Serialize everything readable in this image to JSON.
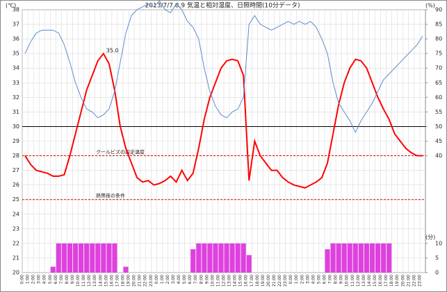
{
  "chart_data": {
    "type": "line",
    "title": "2013/7/7,8,9 気温と相対湿度、日照時間(10分データ)",
    "y_unit": "(℃)",
    "y2_unit": "(%)",
    "y2_unit_bottom": "(分)",
    "categories": [
      "0:00",
      "1:00",
      "2:00",
      "3:00",
      "4:00",
      "5:00",
      "6:00",
      "7:00",
      "8:00",
      "9:00",
      "10:00",
      "11:00",
      "12:00",
      "13:00",
      "14:00",
      "15:00",
      "16:00",
      "17:00",
      "18:00",
      "19:00",
      "20:00",
      "21:00",
      "22:00",
      "23:00",
      "0:00",
      "1:00",
      "2:00",
      "3:00",
      "4:00",
      "5:00",
      "6:00",
      "7:00",
      "8:00",
      "9:00",
      "10:00",
      "11:00",
      "12:00",
      "13:00",
      "14:00",
      "15:00",
      "16:00",
      "17:00",
      "18:00",
      "19:00",
      "20:00",
      "21:00",
      "22:00",
      "23:00",
      "0:00",
      "1:00",
      "2:00",
      "3:00",
      "4:00",
      "5:00",
      "6:00",
      "7:00",
      "8:00",
      "9:00",
      "10:00",
      "11:00",
      "12:00",
      "13:00",
      "14:00",
      "15:00",
      "16:00",
      "17:00",
      "18:00",
      "19:00",
      "20:00",
      "21:00",
      "22:00",
      "23:00"
    ],
    "ylim": [
      20,
      38
    ],
    "yticks": [
      20,
      21,
      22,
      23,
      24,
      25,
      26,
      27,
      28,
      29,
      30,
      31,
      32,
      33,
      34,
      35,
      36,
      37,
      38
    ],
    "y2lim": [
      0,
      90
    ],
    "y2ticks": [
      0,
      5,
      10,
      40,
      45,
      50,
      55,
      60,
      65,
      70,
      75,
      80,
      85,
      90
    ],
    "grid": true,
    "series": [
      {
        "name": "日照時間(分)",
        "type": "bar",
        "axis": "y2",
        "color": "#e040e0",
        "values": [
          0,
          0,
          0,
          0,
          0,
          2,
          10,
          10,
          10,
          10,
          10,
          10,
          10,
          10,
          10,
          10,
          10,
          0,
          2,
          0,
          0,
          0,
          0,
          0,
          0,
          0,
          0,
          0,
          0,
          0,
          8,
          10,
          10,
          10,
          10,
          10,
          10,
          10,
          10,
          10,
          6,
          0,
          0,
          0,
          0,
          0,
          0,
          0,
          0,
          0,
          0,
          0,
          0,
          0,
          8,
          10,
          10,
          10,
          10,
          10,
          10,
          10,
          10,
          10,
          10,
          10,
          0,
          0,
          0,
          0,
          0,
          0
        ]
      },
      {
        "name": "気温(℃)",
        "type": "line",
        "color": "#ff0000",
        "values": [
          28.0,
          27.4,
          27.0,
          26.9,
          26.8,
          26.6,
          26.6,
          26.7,
          28.0,
          29.5,
          31.0,
          32.5,
          33.5,
          34.5,
          35.0,
          34.3,
          32.5,
          30.0,
          28.5,
          27.5,
          26.5,
          26.2,
          26.3,
          26.0,
          26.1,
          26.3,
          26.6,
          26.2,
          27.0,
          26.3,
          26.8,
          28.5,
          30.5,
          32.0,
          33.0,
          34.0,
          34.5,
          34.6,
          34.5,
          33.5,
          26.3,
          29.0,
          28.0,
          27.5,
          27.0,
          27.0,
          26.5,
          26.2,
          26.0,
          25.9,
          25.8,
          26.0,
          26.2,
          26.5,
          27.5,
          29.5,
          31.5,
          33.0,
          34.0,
          34.6,
          34.5,
          34.0,
          33.0,
          32.0,
          31.2,
          30.5,
          29.5,
          29.0,
          28.5,
          28.2,
          28.0,
          28.0
        ]
      },
      {
        "name": "相対湿度(%)",
        "type": "line",
        "axis": "y2",
        "color": "#5b8bd0",
        "values": [
          75,
          79,
          82,
          83,
          83,
          83,
          82,
          78,
          72,
          65,
          60,
          56,
          55,
          53,
          54,
          56,
          62,
          72,
          82,
          88,
          90,
          91,
          92,
          91,
          93,
          90,
          89,
          92,
          90,
          86,
          84,
          80,
          70,
          62,
          57,
          54,
          53,
          55,
          56,
          60,
          85,
          88,
          85,
          84,
          83,
          84,
          85,
          86,
          85,
          86,
          85,
          86,
          84,
          80,
          75,
          65,
          58,
          55,
          52,
          48,
          52,
          55,
          58,
          62,
          66,
          68,
          70,
          72,
          74,
          76,
          78,
          81
        ]
      }
    ],
    "reference_lines": [
      {
        "value": 30,
        "color": "#000000"
      },
      {
        "value": 28,
        "color": "#e00000",
        "label": "クールビズの設定温度"
      },
      {
        "value": 25,
        "color": "#e00000",
        "label": "熱帯夜の条件"
      }
    ],
    "annotation": {
      "text": "35.0",
      "index": 14,
      "series": 1
    }
  }
}
